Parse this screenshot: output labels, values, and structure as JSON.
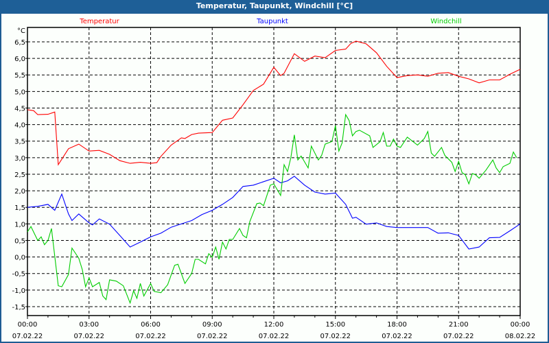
{
  "window": {
    "title": "Temperatur, Taupunkt, Windchill [°C]"
  },
  "chart_data": {
    "type": "line",
    "title": "Temperatur, Taupunkt, Windchill [°C]",
    "ylabel": "°C",
    "ylim": [
      -1.5,
      6.5
    ],
    "xlim_hours": [
      0,
      24
    ],
    "grid": true,
    "legend_placement": "top",
    "ytick_values": [
      -1.5,
      -1.0,
      -0.5,
      0.0,
      0.5,
      1.0,
      1.5,
      2.0,
      2.5,
      3.0,
      3.5,
      4.0,
      4.5,
      5.0,
      5.5,
      6.0,
      6.5
    ],
    "ytick_labels": [
      "-1,5",
      "-1,0",
      "-0,5",
      "0,0",
      "0,5",
      "1,0",
      "1,5",
      "2,0",
      "2,5",
      "3,0",
      "3,5",
      "4,0",
      "4,5",
      "5,0",
      "5,5",
      "6,0",
      "6,5"
    ],
    "xticks": [
      {
        "hour": 0,
        "time": "00:00",
        "date": "07.02.22"
      },
      {
        "hour": 3,
        "time": "03:00",
        "date": "07.02.22"
      },
      {
        "hour": 6,
        "time": "06:00",
        "date": "07.02.22"
      },
      {
        "hour": 9,
        "time": "09:00",
        "date": "07.02.22"
      },
      {
        "hour": 12,
        "time": "12:00",
        "date": "07.02.22"
      },
      {
        "hour": 15,
        "time": "15:00",
        "date": "07.02.22"
      },
      {
        "hour": 18,
        "time": "18:00",
        "date": "07.02.22"
      },
      {
        "hour": 21,
        "time": "21:00",
        "date": "07.02.22"
      },
      {
        "hour": 24,
        "time": "00:00",
        "date": "08.02.22"
      }
    ],
    "series": [
      {
        "name": "Temperatur",
        "color": "#ff0000",
        "points": [
          [
            0,
            4.45
          ],
          [
            0.3,
            4.42
          ],
          [
            0.5,
            4.3
          ],
          [
            1,
            4.31
          ],
          [
            1.33,
            4.38
          ],
          [
            1.5,
            2.79
          ],
          [
            2,
            3.27
          ],
          [
            2.5,
            3.41
          ],
          [
            3,
            3.2
          ],
          [
            3.5,
            3.22
          ],
          [
            4,
            3.1
          ],
          [
            4.5,
            2.91
          ],
          [
            5,
            2.83
          ],
          [
            5.5,
            2.86
          ],
          [
            6,
            2.83
          ],
          [
            6.3,
            2.85
          ],
          [
            6.5,
            3.04
          ],
          [
            7,
            3.38
          ],
          [
            7.5,
            3.6
          ],
          [
            7.67,
            3.58
          ],
          [
            8,
            3.7
          ],
          [
            8.33,
            3.74
          ],
          [
            9,
            3.76
          ],
          [
            9.5,
            4.13
          ],
          [
            10,
            4.2
          ],
          [
            10.5,
            4.6
          ],
          [
            11,
            5.03
          ],
          [
            11.5,
            5.22
          ],
          [
            12,
            5.73
          ],
          [
            12.33,
            5.48
          ],
          [
            12.5,
            5.55
          ],
          [
            13,
            6.14
          ],
          [
            13.5,
            5.91
          ],
          [
            14,
            6.07
          ],
          [
            14.5,
            6.02
          ],
          [
            15,
            6.24
          ],
          [
            15.5,
            6.28
          ],
          [
            15.75,
            6.45
          ],
          [
            16,
            6.52
          ],
          [
            16.5,
            6.44
          ],
          [
            17,
            6.17
          ],
          [
            17.5,
            5.76
          ],
          [
            18,
            5.42
          ],
          [
            18.5,
            5.48
          ],
          [
            19,
            5.5
          ],
          [
            19.5,
            5.46
          ],
          [
            20,
            5.55
          ],
          [
            20.5,
            5.57
          ],
          [
            21,
            5.46
          ],
          [
            21.5,
            5.38
          ],
          [
            22,
            5.26
          ],
          [
            22.5,
            5.35
          ],
          [
            23,
            5.35
          ],
          [
            23.5,
            5.52
          ],
          [
            24,
            5.67
          ]
        ]
      },
      {
        "name": "Taupunkt",
        "color": "#0000ff",
        "points": [
          [
            0,
            1.5
          ],
          [
            0.5,
            1.53
          ],
          [
            1,
            1.59
          ],
          [
            1.33,
            1.41
          ],
          [
            1.67,
            1.9
          ],
          [
            2,
            1.3
          ],
          [
            2.17,
            1.1
          ],
          [
            2.5,
            1.3
          ],
          [
            3,
            1.03
          ],
          [
            3.17,
            0.97
          ],
          [
            3.5,
            1.15
          ],
          [
            4,
            0.99
          ],
          [
            4.5,
            0.65
          ],
          [
            5,
            0.3
          ],
          [
            5.5,
            0.45
          ],
          [
            6,
            0.61
          ],
          [
            6.5,
            0.72
          ],
          [
            7,
            0.9
          ],
          [
            7.5,
            1.0
          ],
          [
            8,
            1.1
          ],
          [
            8.5,
            1.28
          ],
          [
            9,
            1.41
          ],
          [
            9.5,
            1.59
          ],
          [
            10,
            1.8
          ],
          [
            10.5,
            2.13
          ],
          [
            11,
            2.17
          ],
          [
            12,
            2.38
          ],
          [
            12.33,
            2.24
          ],
          [
            12.67,
            2.3
          ],
          [
            13,
            2.44
          ],
          [
            13.5,
            2.17
          ],
          [
            14,
            1.96
          ],
          [
            14.5,
            1.9
          ],
          [
            15,
            1.93
          ],
          [
            15.5,
            1.59
          ],
          [
            15.83,
            1.17
          ],
          [
            16,
            1.2
          ],
          [
            16.5,
            0.99
          ],
          [
            17,
            1.03
          ],
          [
            17.5,
            0.92
          ],
          [
            18,
            0.89
          ],
          [
            19.5,
            0.89
          ],
          [
            20,
            0.72
          ],
          [
            20.5,
            0.73
          ],
          [
            21,
            0.65
          ],
          [
            21.5,
            0.24
          ],
          [
            22,
            0.3
          ],
          [
            22.5,
            0.58
          ],
          [
            23,
            0.59
          ],
          [
            23.5,
            0.79
          ],
          [
            24,
            1.0
          ]
        ]
      },
      {
        "name": "Windchill",
        "color": "#00cc00",
        "points": [
          [
            0,
            0.76
          ],
          [
            0.17,
            0.92
          ],
          [
            0.5,
            0.5
          ],
          [
            0.67,
            0.61
          ],
          [
            0.83,
            0.37
          ],
          [
            1,
            0.5
          ],
          [
            1.17,
            0.86
          ],
          [
            1.5,
            -0.87
          ],
          [
            1.67,
            -0.9
          ],
          [
            2,
            -0.53
          ],
          [
            2.17,
            0.27
          ],
          [
            2.5,
            -0.04
          ],
          [
            2.67,
            -0.38
          ],
          [
            2.83,
            -0.9
          ],
          [
            3,
            -0.63
          ],
          [
            3.17,
            -0.9
          ],
          [
            3.5,
            -0.77
          ],
          [
            3.67,
            -1.18
          ],
          [
            3.83,
            -1.29
          ],
          [
            4,
            -0.69
          ],
          [
            4.33,
            -0.73
          ],
          [
            4.67,
            -0.87
          ],
          [
            5,
            -1.39
          ],
          [
            5.17,
            -1.02
          ],
          [
            5.33,
            -1.25
          ],
          [
            5.5,
            -0.8
          ],
          [
            5.67,
            -1.18
          ],
          [
            6,
            -0.8
          ],
          [
            6.17,
            -1.04
          ],
          [
            6.5,
            -1.08
          ],
          [
            6.83,
            -0.84
          ],
          [
            7.17,
            -0.25
          ],
          [
            7.33,
            -0.22
          ],
          [
            7.67,
            -0.8
          ],
          [
            8,
            -0.5
          ],
          [
            8.17,
            -0.07
          ],
          [
            8.33,
            -0.07
          ],
          [
            8.67,
            -0.21
          ],
          [
            8.83,
            0.1
          ],
          [
            9,
            -0.01
          ],
          [
            9.17,
            0.3
          ],
          [
            9.33,
            -0.07
          ],
          [
            9.5,
            0.45
          ],
          [
            9.67,
            0.24
          ],
          [
            9.83,
            0.53
          ],
          [
            10,
            0.53
          ],
          [
            10.33,
            0.86
          ],
          [
            10.5,
            0.65
          ],
          [
            10.67,
            0.58
          ],
          [
            10.83,
            1.07
          ],
          [
            11.17,
            1.61
          ],
          [
            11.33,
            1.63
          ],
          [
            11.5,
            1.55
          ],
          [
            11.83,
            2.17
          ],
          [
            12,
            2.21
          ],
          [
            12.33,
            1.86
          ],
          [
            12.5,
            2.79
          ],
          [
            12.67,
            2.58
          ],
          [
            12.83,
            3.0
          ],
          [
            13,
            3.69
          ],
          [
            13.17,
            2.93
          ],
          [
            13.33,
            3.05
          ],
          [
            13.67,
            2.69
          ],
          [
            13.83,
            3.35
          ],
          [
            14.17,
            2.93
          ],
          [
            14.33,
            3.07
          ],
          [
            14.5,
            3.41
          ],
          [
            14.83,
            3.49
          ],
          [
            15,
            3.97
          ],
          [
            15.17,
            3.2
          ],
          [
            15.33,
            3.45
          ],
          [
            15.5,
            4.3
          ],
          [
            15.67,
            4.12
          ],
          [
            15.83,
            3.66
          ],
          [
            16,
            3.79
          ],
          [
            16.17,
            3.83
          ],
          [
            16.67,
            3.66
          ],
          [
            16.83,
            3.31
          ],
          [
            17.17,
            3.48
          ],
          [
            17.33,
            3.76
          ],
          [
            17.5,
            3.35
          ],
          [
            17.67,
            3.35
          ],
          [
            17.83,
            3.56
          ],
          [
            18,
            3.35
          ],
          [
            18.17,
            3.31
          ],
          [
            18.5,
            3.62
          ],
          [
            19,
            3.38
          ],
          [
            19.33,
            3.58
          ],
          [
            19.5,
            3.79
          ],
          [
            19.67,
            3.14
          ],
          [
            19.83,
            3.04
          ],
          [
            20.17,
            3.31
          ],
          [
            20.33,
            3.07
          ],
          [
            20.67,
            2.86
          ],
          [
            20.83,
            2.58
          ],
          [
            21,
            2.89
          ],
          [
            21.17,
            2.55
          ],
          [
            21.33,
            2.48
          ],
          [
            21.5,
            2.21
          ],
          [
            21.67,
            2.52
          ],
          [
            21.83,
            2.48
          ],
          [
            22,
            2.38
          ],
          [
            22.33,
            2.62
          ],
          [
            22.67,
            2.93
          ],
          [
            22.83,
            2.69
          ],
          [
            23,
            2.55
          ],
          [
            23.17,
            2.73
          ],
          [
            23.5,
            2.83
          ],
          [
            23.67,
            3.17
          ],
          [
            23.83,
            3.0
          ]
        ]
      }
    ]
  }
}
